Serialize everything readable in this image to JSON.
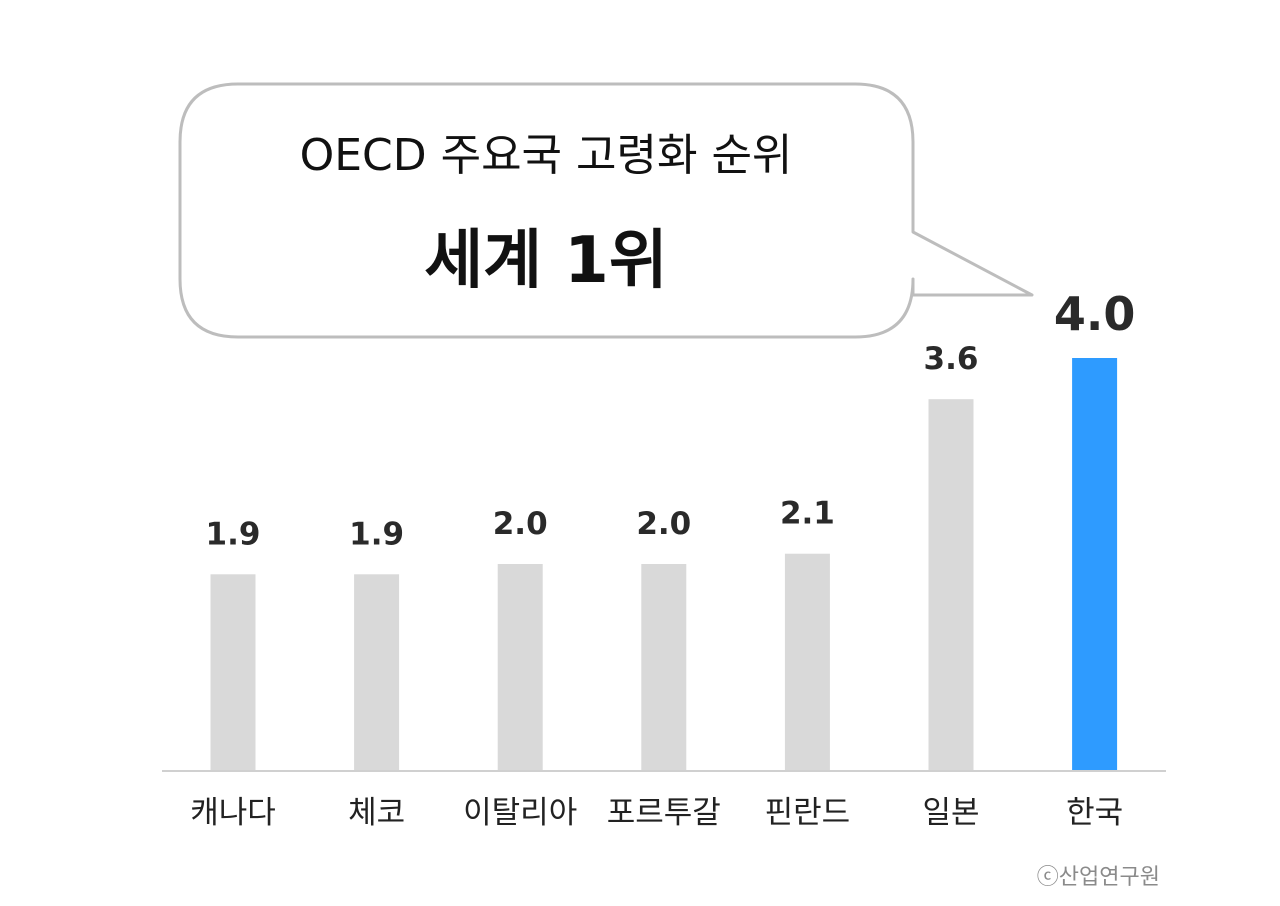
{
  "callout": {
    "line1": "OECD 주요국 고령화 순위",
    "line2": "세계 1위"
  },
  "credit": "ⓒ산업연구원",
  "colors": {
    "bar_default": "#d9d9d9",
    "bar_highlight": "#2e9bff",
    "label_default": "#2a2a2a",
    "label_highlight": "#2e9bff",
    "baseline": "#d0d0d0",
    "bubble_border": "#bdbdbd"
  },
  "chart_data": {
    "type": "bar",
    "title": "OECD 주요국 고령화 순위",
    "xlabel": "",
    "ylabel": "",
    "categories": [
      "캐나다",
      "체코",
      "이탈리아",
      "포르투갈",
      "핀란드",
      "일본",
      "한국"
    ],
    "values": [
      1.9,
      1.9,
      2.0,
      2.0,
      2.1,
      3.6,
      4.0
    ],
    "value_labels": [
      "1.9",
      "1.9",
      "2.0",
      "2.0",
      "2.1",
      "3.6",
      "4.0"
    ],
    "highlight": "한국",
    "ylim": [
      0,
      4.0
    ],
    "grid": false,
    "legend": "none"
  }
}
